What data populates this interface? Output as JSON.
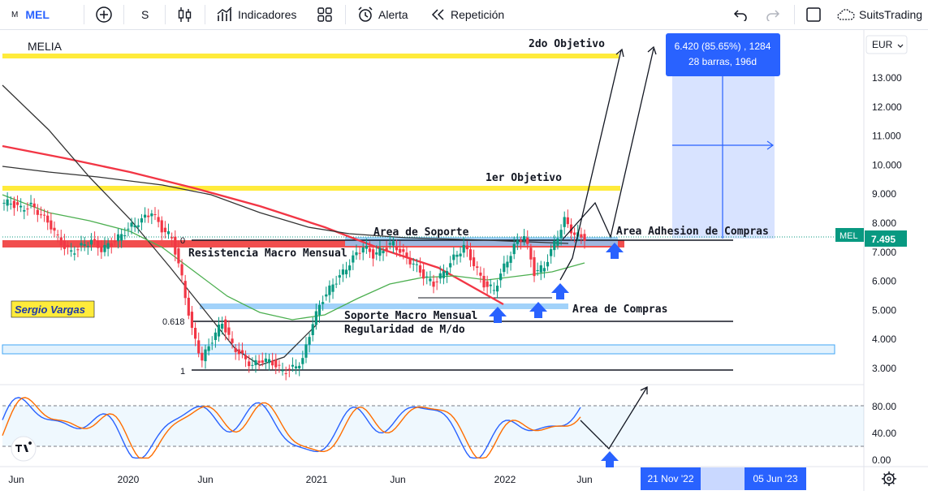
{
  "toolbar": {
    "symbol_prefix": "M",
    "symbol": "MEL",
    "interval": "S",
    "indicators_label": "Indicadores",
    "alert_label": "Alerta",
    "replay_label": "Repetición",
    "account": "SuitsTrading"
  },
  "chart": {
    "instrument_label": "MELIA",
    "author_tag": "Sergio Vargas",
    "currency": "EUR",
    "price_axis": [
      "13.000",
      "12.000",
      "11.000",
      "10.000",
      "9.000",
      "8.000",
      "7.000",
      "6.000",
      "5.000",
      "4.000",
      "3.000"
    ],
    "last_price_tag": {
      "symbol": "MEL",
      "price": "7.495"
    },
    "osc_axis": [
      "80.00",
      "40.00",
      "0.00"
    ],
    "time_axis": [
      "Jun",
      "2020",
      "Jun",
      "2021",
      "Jun",
      "2022",
      "Jun"
    ],
    "time_markers": [
      "21 Nov '22",
      "05 Jun '23"
    ],
    "measure": {
      "line1": "6.420 (85.65%) , 1284",
      "line2": "28 barras, 196d"
    },
    "fib_labels": [
      "0",
      "0.618",
      "1"
    ],
    "annotations": {
      "target2": "2do Objetivo",
      "target1": "1er Objetivo",
      "support_area": "Area de Soporte",
      "adhesion_area": "Area Adhesion de Compras",
      "macro_resistance": "Resistencia Macro Mensual",
      "buy_area": "Area de Compras",
      "macro_support": "Soporte Macro Mensual",
      "regularity": "Regularidad de M/do"
    },
    "colors": {
      "up": "#089981",
      "down": "#f23645",
      "target_line": "#ffeb3b",
      "support_zone": "#90caf9",
      "arrow": "#2962ff"
    }
  },
  "chart_data": {
    "type": "candlestick",
    "symbol": "MEL",
    "currency": "EUR",
    "price_range": [
      2.7,
      14.2
    ],
    "horizontal_levels": {
      "2do Objetivo": 13.0,
      "1er Objetivo": 9.3,
      "Area de Soporte": 7.5,
      "Resistencia Macro Mensual": 7.35,
      "Soporte Macro Mensual": 5.1,
      "Regularidad de M/do": 4.65,
      "fib_1": 2.9
    },
    "close_approx": [
      8.7,
      8.5,
      8.6,
      8.3,
      7.9,
      7.3,
      7.0,
      7.2,
      7.4,
      7.1,
      7.3,
      7.6,
      7.9,
      8.1,
      8.4,
      7.8,
      7.5,
      6.1,
      4.3,
      3.3,
      4.0,
      4.6,
      3.8,
      3.4,
      3.1,
      3.3,
      3.2,
      2.9,
      3.0,
      3.3,
      4.6,
      5.4,
      5.9,
      6.3,
      6.8,
      7.2,
      6.9,
      7.1,
      7.3,
      6.9,
      6.6,
      6.2,
      5.9,
      6.3,
      6.8,
      7.2,
      6.6,
      5.9,
      5.7,
      6.5,
      7.2,
      7.6,
      6.3,
      6.5,
      7.3,
      8.1,
      7.6,
      7.5
    ],
    "last_price": 7.495,
    "oscillator": {
      "name": "Stochastic",
      "levels": [
        80,
        20
      ],
      "axis": [
        0,
        40,
        80
      ]
    }
  }
}
